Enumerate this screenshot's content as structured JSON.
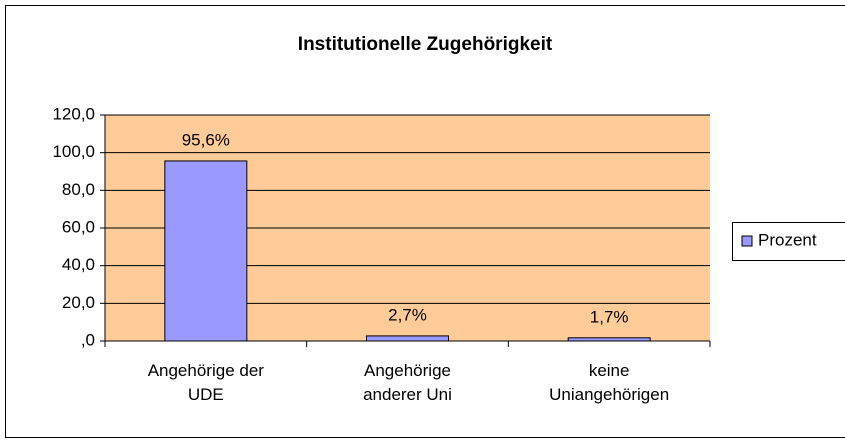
{
  "chart_data": {
    "type": "bar",
    "title": "Institutionelle Zugehörigkeit",
    "categories": [
      "Angehörige der UDE",
      "Angehörige anderer Uni",
      "keine Uniangehörigen"
    ],
    "series": [
      {
        "name": "Prozent",
        "color": "#9999ff",
        "values": [
          95.6,
          2.7,
          1.7
        ],
        "value_labels": [
          "95,6%",
          "2,7%",
          "1,7%"
        ]
      }
    ],
    "ylim": [
      0,
      120
    ],
    "yticks": [
      {
        "value": 0,
        "label": ",0"
      },
      {
        "value": 20,
        "label": "20,0"
      },
      {
        "value": 40,
        "label": "40,0"
      },
      {
        "value": 60,
        "label": "60,0"
      },
      {
        "value": 80,
        "label": "80,0"
      },
      {
        "value": 100,
        "label": "100,0"
      },
      {
        "value": 120,
        "label": "120,0"
      }
    ],
    "grid": true,
    "plot_background": "#ffcc99",
    "legend": "right"
  }
}
